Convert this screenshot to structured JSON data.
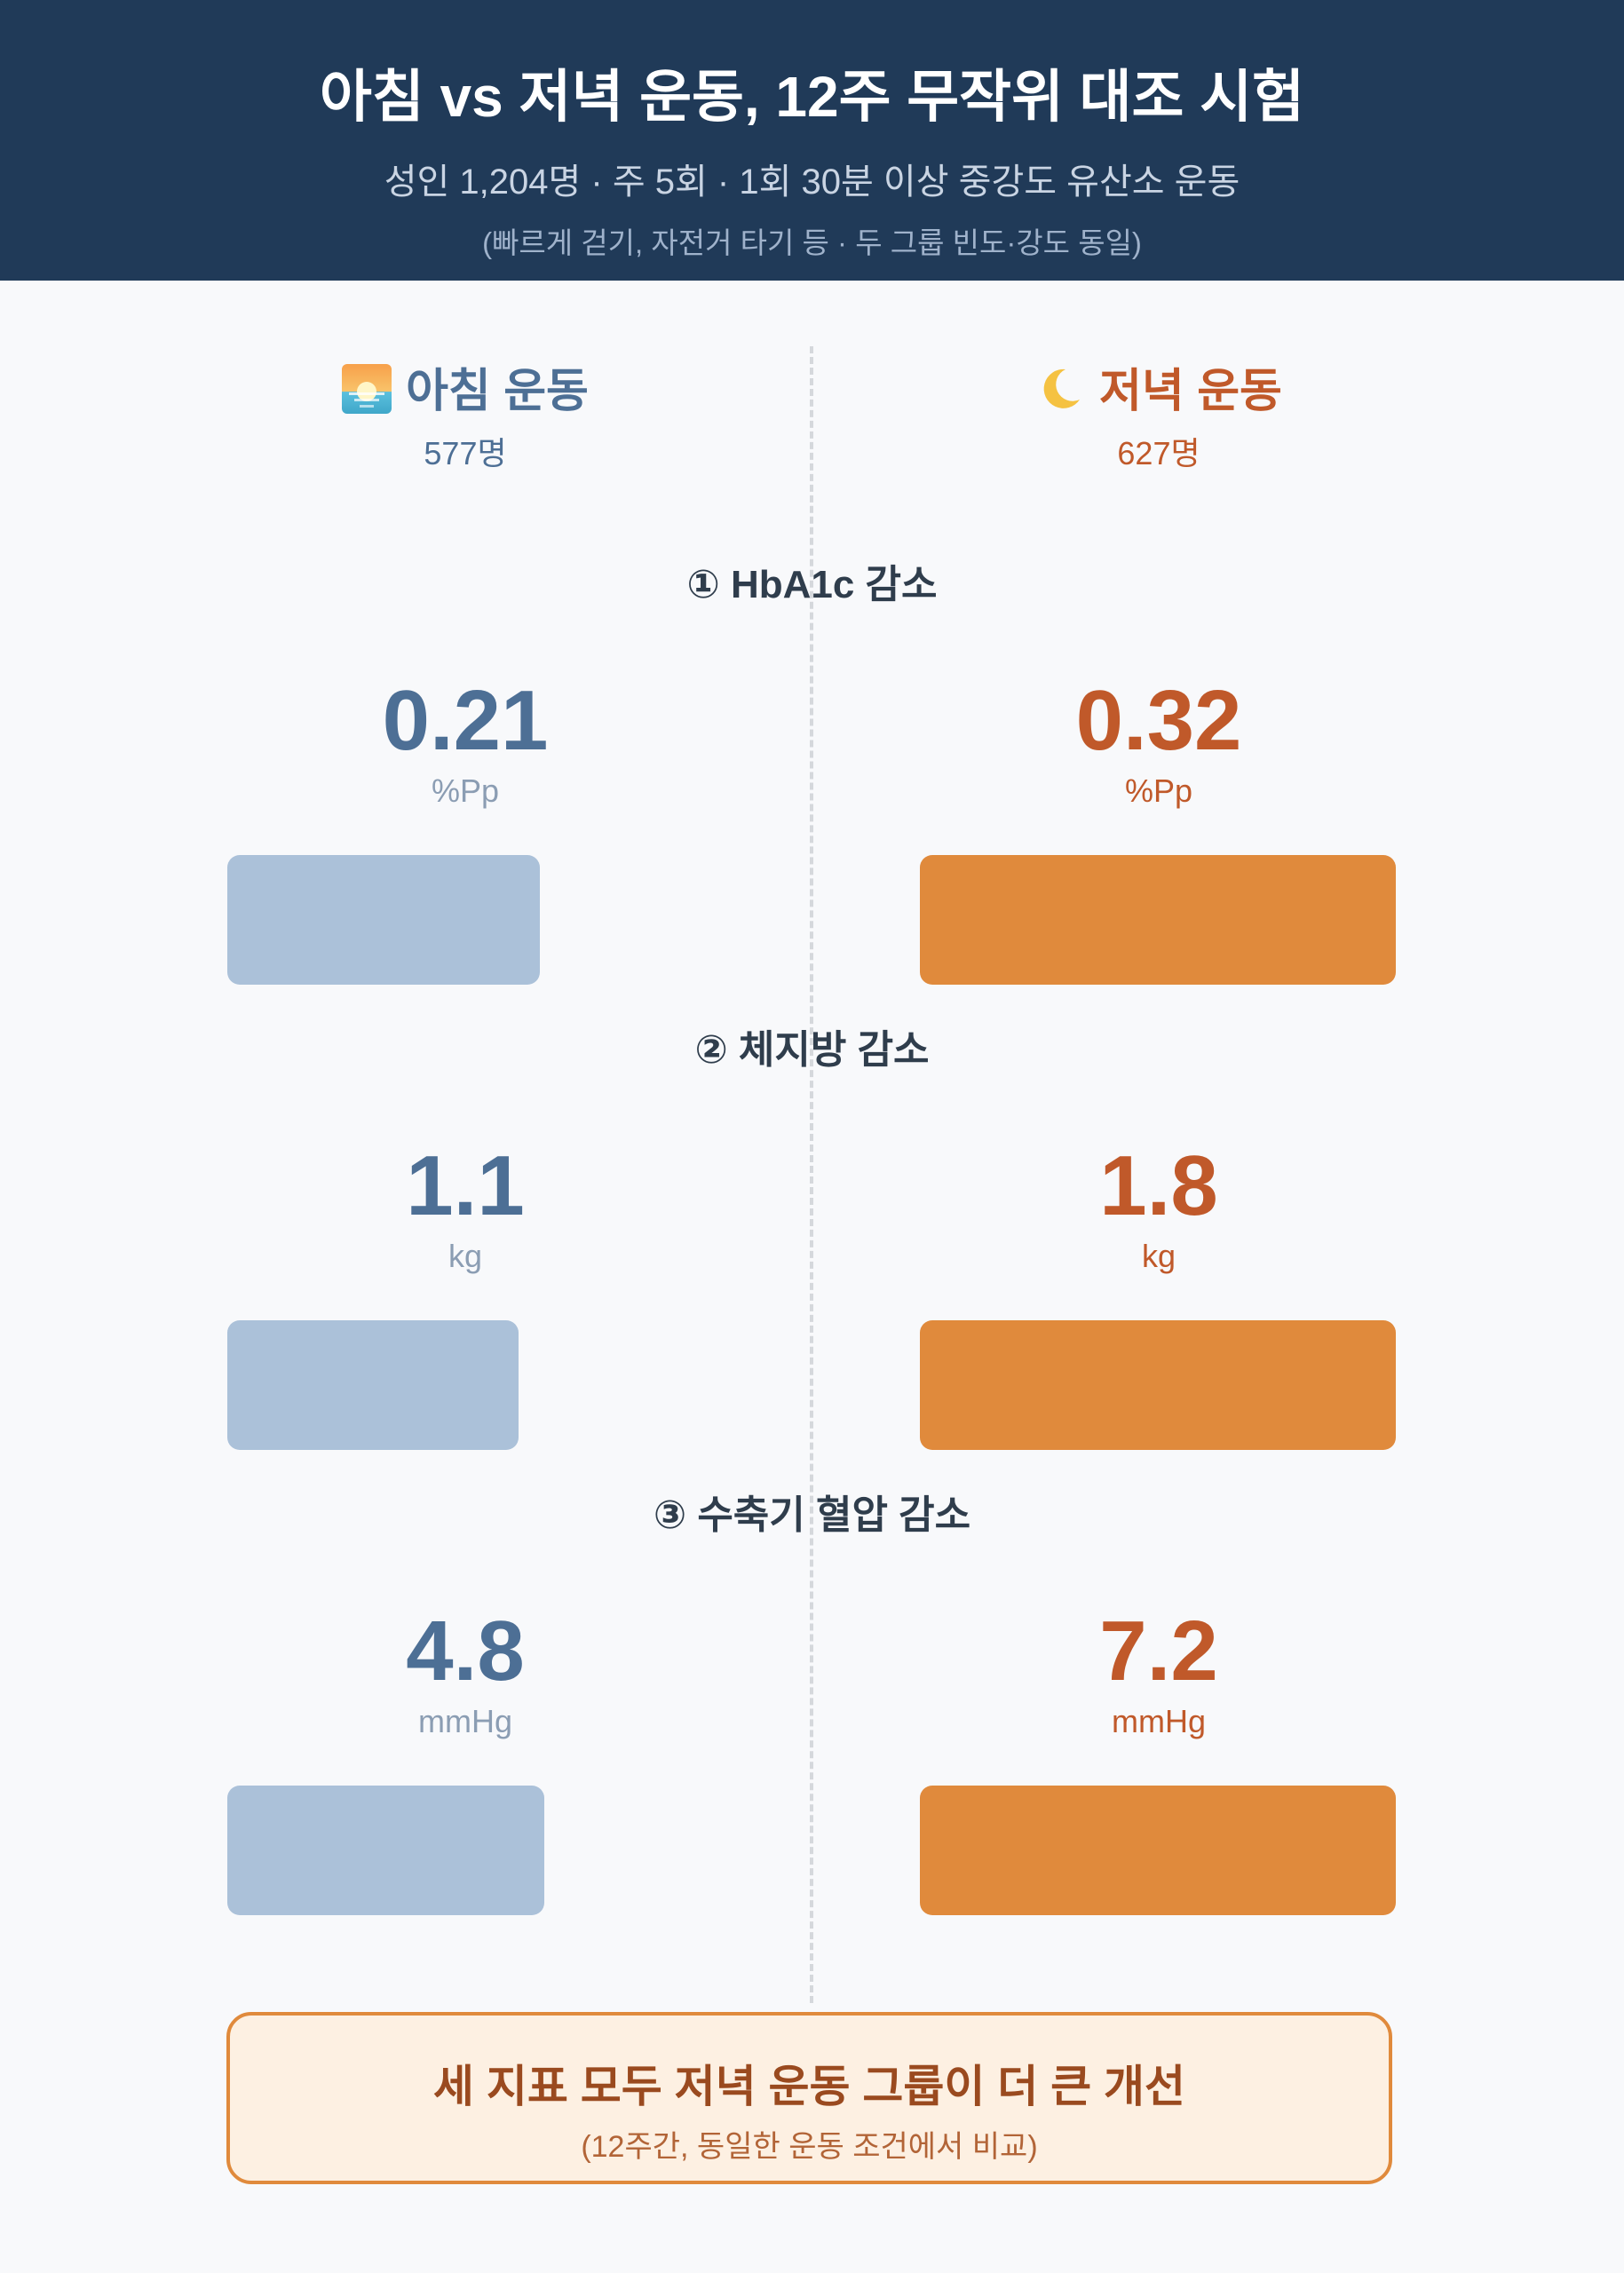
{
  "header": {
    "title": "아침 vs 저녁 운동, 12주 무작위 대조 시험",
    "subtitle": "성인 1,204명 · 주 5회 · 1회 30분 이상 중강도 유산소 운동",
    "note": "(빠르게 걷기, 자전거 타기 등 · 두 그룹 빈도·강도 동일)"
  },
  "groups": {
    "morning": {
      "name": "아침 운동",
      "count": "577명",
      "icon": "sunrise-icon",
      "color": "#4d6f95"
    },
    "evening": {
      "name": "저녁 운동",
      "count": "627명",
      "icon": "crescent-moon-icon",
      "color": "#c0592a"
    }
  },
  "colors": {
    "morning_bar": "#abc1d9",
    "evening_bar": "#e08a3c",
    "header_bg": "#203a58"
  },
  "chart_data": {
    "type": "bar",
    "categories": [
      "① HbA1c 감소",
      "② 체지방 감소",
      "③ 수축기 혈압 감소"
    ],
    "series": [
      {
        "name": "아침 운동",
        "values": [
          0.21,
          1.1,
          4.8
        ],
        "labels": [
          "0.21",
          "1.1",
          "4.8"
        ]
      },
      {
        "name": "저녁 운동",
        "values": [
          0.32,
          1.8,
          7.2
        ],
        "labels": [
          "0.32",
          "1.8",
          "7.2"
        ]
      }
    ],
    "units": [
      "%Pp",
      "kg",
      "mmHg"
    ],
    "orientation": "horizontal",
    "scale": "per-metric, evening = full bar"
  },
  "summary": {
    "main": "세 지표 모두 저녁 운동 그룹이 더 큰 개선",
    "sub": "(12주간, 동일한 운동 조건에서 비교)"
  }
}
